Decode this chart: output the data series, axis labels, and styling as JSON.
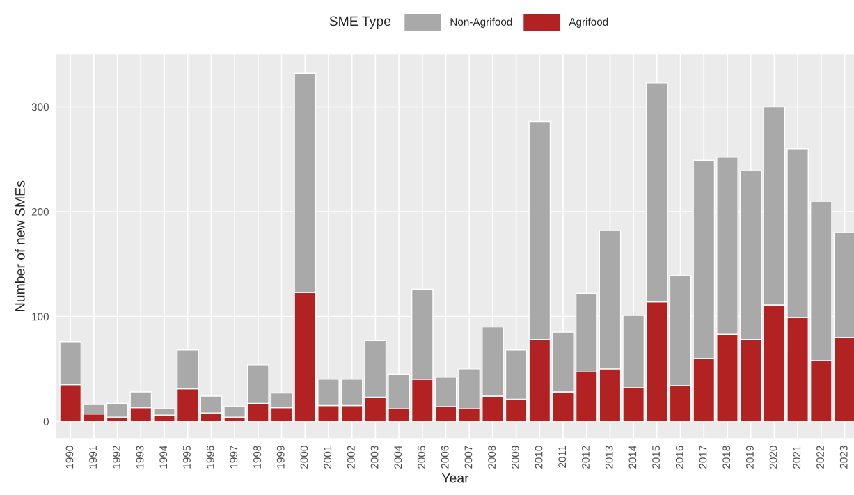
{
  "chart_data": {
    "type": "bar",
    "stacked": true,
    "xlabel": "Year",
    "ylabel": "Number of new SMEs",
    "legend_title": "SME Type",
    "legend": "top",
    "categories": [
      "1990",
      "1991",
      "1992",
      "1993",
      "1994",
      "1995",
      "1996",
      "1997",
      "1998",
      "1999",
      "2000",
      "2001",
      "2002",
      "2003",
      "2004",
      "2005",
      "2006",
      "2007",
      "2008",
      "2009",
      "2010",
      "2011",
      "2012",
      "2013",
      "2014",
      "2015",
      "2016",
      "2017",
      "2018",
      "2019",
      "2020",
      "2021",
      "2022",
      "2023"
    ],
    "series": [
      {
        "name": "Agrifood",
        "color": "#b22222",
        "values": [
          35,
          7,
          4,
          13,
          6,
          31,
          8,
          4,
          17,
          13,
          123,
          15,
          15,
          23,
          12,
          40,
          14,
          12,
          24,
          21,
          78,
          28,
          47,
          50,
          32,
          114,
          34,
          60,
          83,
          78,
          111,
          99,
          58,
          80
        ]
      },
      {
        "name": "Non-Agrifood",
        "color": "#a9a9a9",
        "values": [
          41,
          9,
          13,
          15,
          6,
          37,
          16,
          10,
          37,
          14,
          209,
          25,
          25,
          54,
          33,
          86,
          28,
          38,
          66,
          47,
          208,
          57,
          75,
          132,
          69,
          209,
          105,
          189,
          169,
          161,
          189,
          161,
          152,
          100
        ]
      }
    ],
    "ylim": [
      -16,
      350
    ],
    "yticks": [
      0,
      100,
      200,
      300
    ],
    "grid": true
  }
}
